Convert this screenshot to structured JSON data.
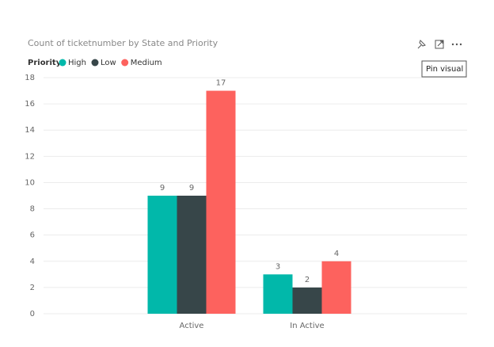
{
  "chart_data": {
    "type": "bar",
    "title": "Count of ticketnumber by State and Priority",
    "legend_title": "Priority",
    "categories": [
      "Active",
      "In Active"
    ],
    "series": [
      {
        "name": "High",
        "color": "#01b8aa",
        "values": [
          9,
          3
        ]
      },
      {
        "name": "Low",
        "color": "#374649",
        "values": [
          9,
          2
        ]
      },
      {
        "name": "Medium",
        "color": "#fd625e",
        "values": [
          17,
          4
        ]
      }
    ],
    "ylim": [
      0,
      18
    ],
    "yticks": [
      0,
      2,
      4,
      6,
      8,
      10,
      12,
      14,
      16,
      18
    ],
    "grid": true,
    "tooltip": "Pin visual"
  }
}
